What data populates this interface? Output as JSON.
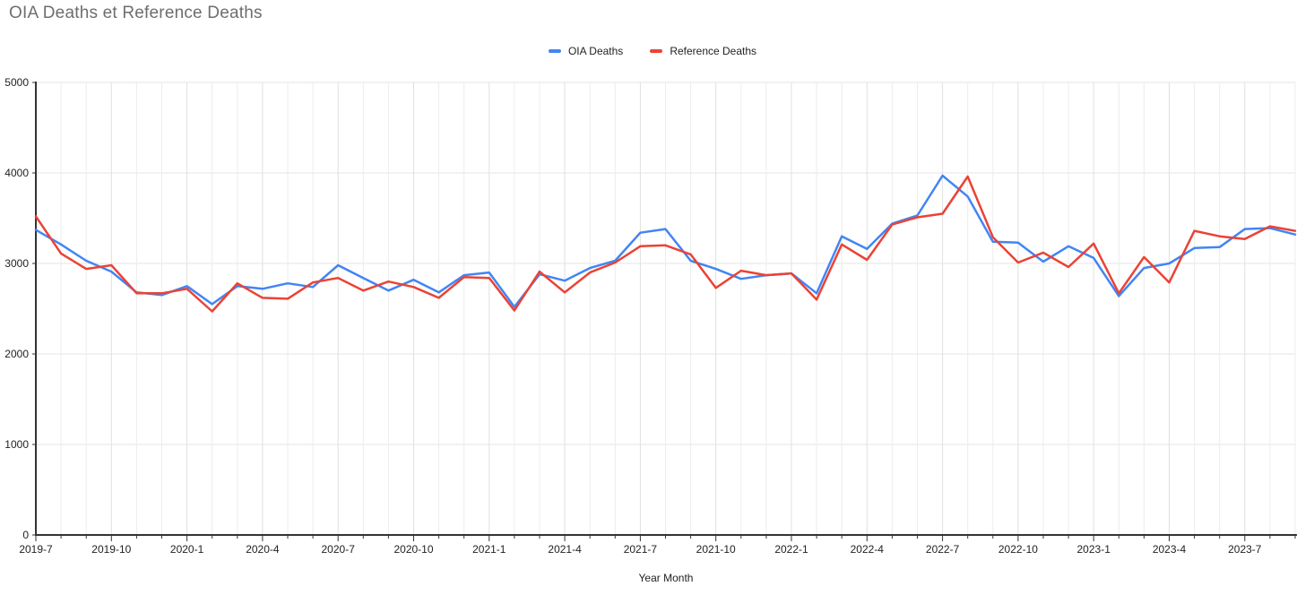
{
  "chart_data": {
    "type": "line",
    "title": "OIA Deaths et Reference Deaths",
    "x_axis_label": "Year Month",
    "legend_position": "top",
    "grid": true,
    "ylim": [
      0,
      5000
    ],
    "y_ticks": [
      0,
      1000,
      2000,
      3000,
      4000,
      5000
    ],
    "x_tick_every": 3,
    "x": [
      "2019-7",
      "2019-8",
      "2019-9",
      "2019-10",
      "2019-11",
      "2019-12",
      "2020-1",
      "2020-2",
      "2020-3",
      "2020-4",
      "2020-5",
      "2020-6",
      "2020-7",
      "2020-8",
      "2020-9",
      "2020-10",
      "2020-11",
      "2020-12",
      "2021-1",
      "2021-2",
      "2021-3",
      "2021-4",
      "2021-5",
      "2021-6",
      "2021-7",
      "2021-8",
      "2021-9",
      "2021-10",
      "2021-11",
      "2021-12",
      "2022-1",
      "2022-2",
      "2022-3",
      "2022-4",
      "2022-5",
      "2022-6",
      "2022-7",
      "2022-8",
      "2022-9",
      "2022-10",
      "2022-11",
      "2022-12",
      "2023-1",
      "2023-2",
      "2023-3",
      "2023-4",
      "2023-5",
      "2023-6",
      "2023-7",
      "2023-8",
      "2023-9"
    ],
    "series": [
      {
        "name": "OIA Deaths",
        "color": "#4285F4",
        "values": [
          3370,
          3210,
          3030,
          2910,
          2680,
          2650,
          2750,
          2550,
          2750,
          2720,
          2780,
          2740,
          2980,
          2840,
          2700,
          2820,
          2680,
          2870,
          2900,
          2520,
          2880,
          2810,
          2950,
          3030,
          3340,
          3380,
          3030,
          2940,
          2830,
          2870,
          2890,
          2670,
          3300,
          3160,
          3440,
          3530,
          3970,
          3740,
          3240,
          3230,
          3020,
          3190,
          3060,
          2640,
          2950,
          3000,
          3170,
          3180,
          3380,
          3390,
          3320
        ]
      },
      {
        "name": "Reference Deaths",
        "color": "#EA4335",
        "values": [
          3520,
          3110,
          2940,
          2980,
          2670,
          2670,
          2720,
          2470,
          2780,
          2620,
          2610,
          2790,
          2840,
          2700,
          2800,
          2740,
          2620,
          2850,
          2840,
          2480,
          2910,
          2680,
          2900,
          3010,
          3190,
          3200,
          3100,
          2730,
          2920,
          2870,
          2890,
          2600,
          3210,
          3040,
          3430,
          3510,
          3550,
          3960,
          3290,
          3010,
          3120,
          2960,
          3220,
          2670,
          3070,
          2790,
          3360,
          3300,
          3270,
          3410,
          3360
        ]
      }
    ],
    "colors": {
      "axis": "#333333",
      "grid_horizontal": "#e6e6e6",
      "grid_vertical": "#ececec",
      "tick_label": "#222222",
      "title": "#6e6e6e"
    }
  }
}
